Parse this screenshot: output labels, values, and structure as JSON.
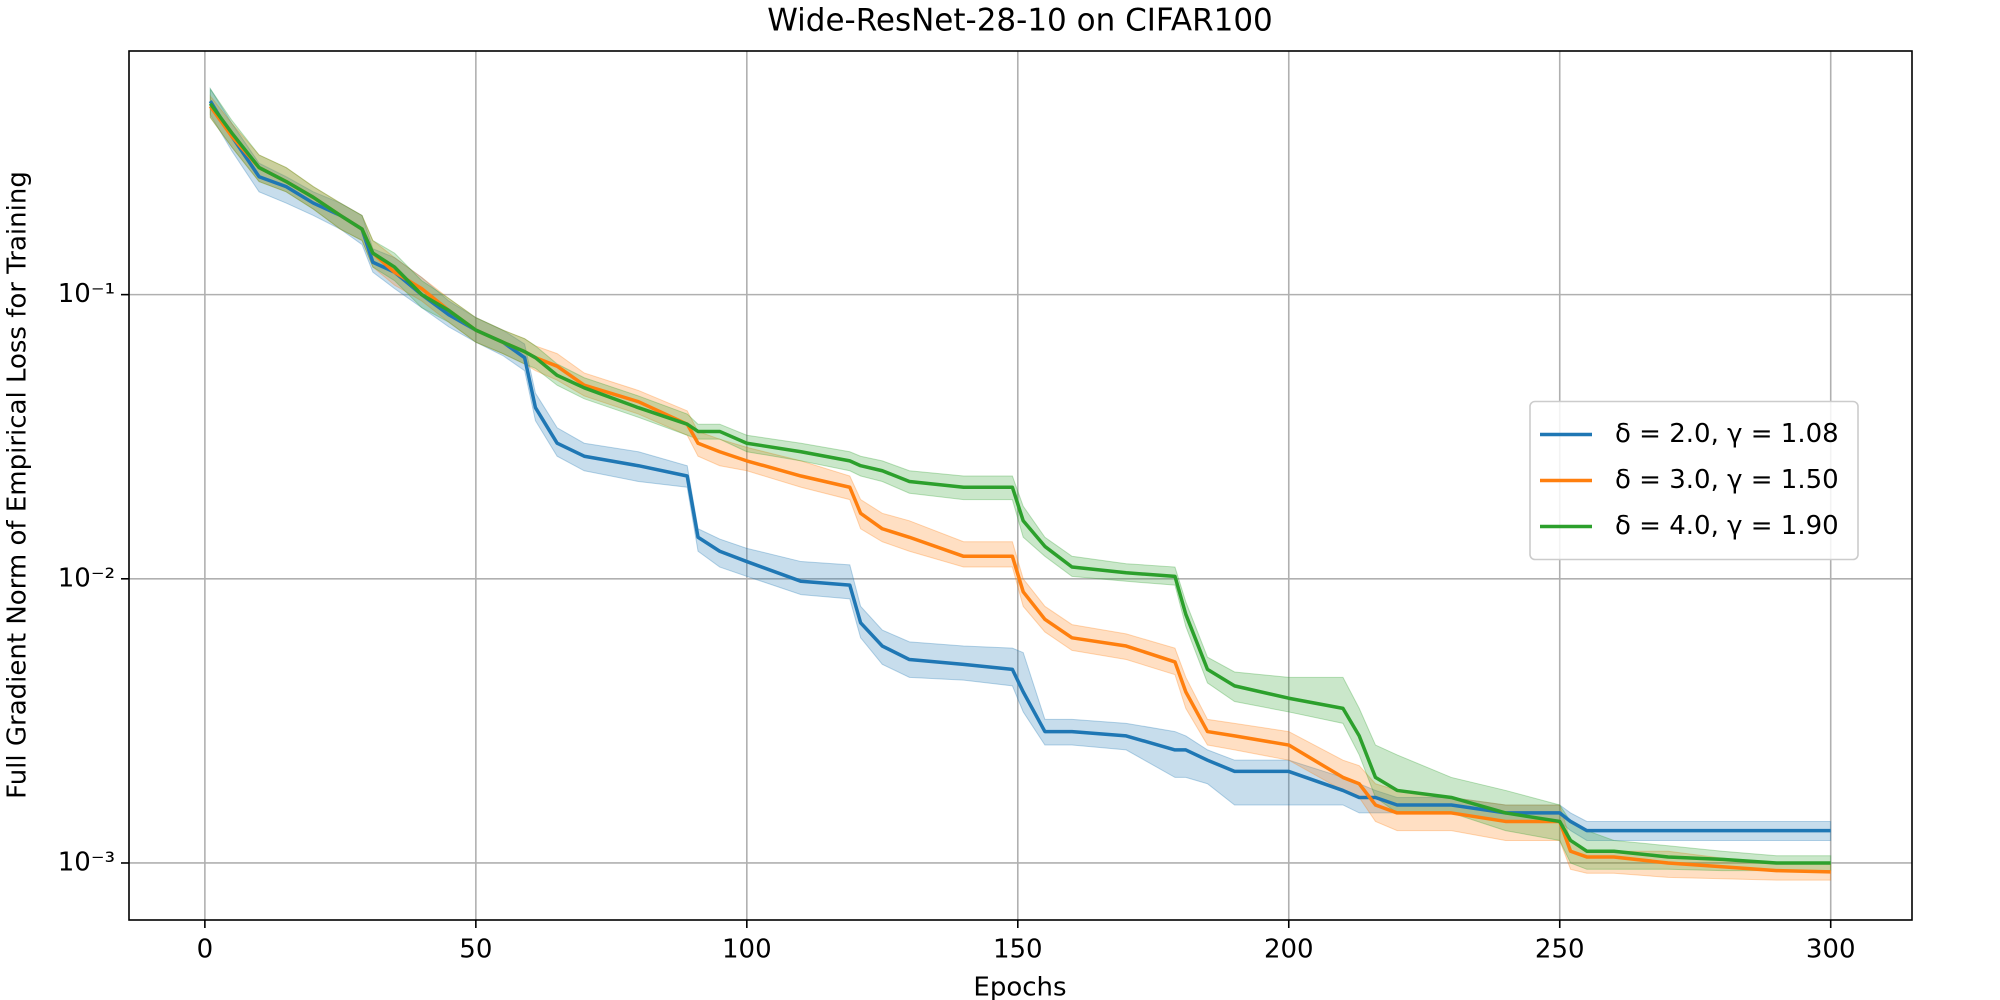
{
  "chart_data": {
    "type": "line",
    "title": "Wide-ResNet-28-10 on CIFAR100",
    "x_label": "Epochs",
    "y_label": "Full Gradient Norm of Empirical Loss for Training",
    "log_y": true,
    "grid": true,
    "legend": "center right",
    "xlim": [
      -14,
      315
    ],
    "ylim": [
      0.00063,
      0.72
    ],
    "xticks": [
      0,
      50,
      100,
      150,
      200,
      250,
      300
    ],
    "yticks": [
      {
        "value": 0.001,
        "label": "10⁻³"
      },
      {
        "value": 0.01,
        "label": "10⁻²"
      },
      {
        "value": 0.1,
        "label": "10⁻¹"
      }
    ],
    "x": [
      1,
      5,
      10,
      15,
      20,
      25,
      29,
      31,
      35,
      40,
      45,
      50,
      55,
      59,
      61,
      65,
      70,
      80,
      89,
      91,
      95,
      100,
      110,
      119,
      121,
      125,
      130,
      140,
      149,
      151,
      155,
      160,
      170,
      179,
      181,
      185,
      190,
      200,
      210,
      213,
      216,
      220,
      230,
      240,
      250,
      252,
      255,
      260,
      270,
      280,
      290,
      300
    ],
    "series": [
      {
        "name": "δ = 2.0, γ = 1.08",
        "color": "#1f77b4",
        "values": [
          0.48,
          0.36,
          0.26,
          0.24,
          0.21,
          0.19,
          0.17,
          0.13,
          0.12,
          0.1,
          0.085,
          0.075,
          0.068,
          0.06,
          0.04,
          0.03,
          0.027,
          0.025,
          0.023,
          0.014,
          0.0125,
          0.0115,
          0.0098,
          0.0095,
          0.007,
          0.0058,
          0.0052,
          0.005,
          0.0048,
          0.004,
          0.0029,
          0.0029,
          0.0028,
          0.0025,
          0.0025,
          0.0023,
          0.0021,
          0.0021,
          0.0018,
          0.0017,
          0.0017,
          0.0016,
          0.0016,
          0.0015,
          0.0015,
          0.0014,
          0.0013,
          0.0013,
          0.0013,
          0.0013,
          0.0013,
          0.0013
        ],
        "lower": [
          0.43,
          0.32,
          0.23,
          0.21,
          0.19,
          0.17,
          0.15,
          0.12,
          0.105,
          0.09,
          0.077,
          0.068,
          0.061,
          0.054,
          0.036,
          0.027,
          0.024,
          0.022,
          0.021,
          0.0125,
          0.011,
          0.0102,
          0.0088,
          0.0085,
          0.0062,
          0.005,
          0.0045,
          0.0044,
          0.0042,
          0.0034,
          0.0026,
          0.0026,
          0.0025,
          0.002,
          0.002,
          0.0019,
          0.0016,
          0.0016,
          0.0016,
          0.0015,
          0.0015,
          0.0015,
          0.0015,
          0.0014,
          0.0014,
          0.0013,
          0.0012,
          0.0012,
          0.0012,
          0.0012,
          0.0012,
          0.0012
        ],
        "upper": [
          0.53,
          0.4,
          0.29,
          0.26,
          0.23,
          0.21,
          0.19,
          0.145,
          0.135,
          0.115,
          0.095,
          0.083,
          0.075,
          0.067,
          0.045,
          0.034,
          0.03,
          0.028,
          0.025,
          0.015,
          0.0138,
          0.0128,
          0.0115,
          0.0112,
          0.008,
          0.0066,
          0.006,
          0.0058,
          0.0057,
          0.0055,
          0.0032,
          0.0032,
          0.0031,
          0.0029,
          0.0028,
          0.0025,
          0.0023,
          0.0023,
          0.002,
          0.0019,
          0.0018,
          0.0017,
          0.0017,
          0.0016,
          0.0016,
          0.0015,
          0.0014,
          0.0014,
          0.0014,
          0.0014,
          0.0014,
          0.0014
        ]
      },
      {
        "name": "δ = 3.0, γ = 1.50",
        "color": "#ff7f0e",
        "values": [
          0.46,
          0.36,
          0.28,
          0.25,
          0.22,
          0.19,
          0.17,
          0.14,
          0.12,
          0.105,
          0.088,
          0.075,
          0.068,
          0.063,
          0.06,
          0.056,
          0.048,
          0.042,
          0.035,
          0.03,
          0.028,
          0.026,
          0.023,
          0.021,
          0.017,
          0.015,
          0.014,
          0.012,
          0.012,
          0.009,
          0.0072,
          0.0062,
          0.0058,
          0.0051,
          0.004,
          0.0029,
          0.0028,
          0.0026,
          0.002,
          0.0019,
          0.0016,
          0.0015,
          0.0015,
          0.0014,
          0.0014,
          0.0011,
          0.00105,
          0.00105,
          0.001,
          0.00097,
          0.00094,
          0.00093
        ],
        "lower": [
          0.42,
          0.33,
          0.25,
          0.23,
          0.2,
          0.17,
          0.155,
          0.125,
          0.108,
          0.095,
          0.08,
          0.068,
          0.062,
          0.057,
          0.054,
          0.05,
          0.044,
          0.038,
          0.032,
          0.027,
          0.025,
          0.024,
          0.021,
          0.019,
          0.015,
          0.0135,
          0.0125,
          0.011,
          0.011,
          0.008,
          0.0065,
          0.0056,
          0.0052,
          0.0046,
          0.0035,
          0.0026,
          0.0025,
          0.0023,
          0.0018,
          0.0017,
          0.0014,
          0.0013,
          0.0013,
          0.0012,
          0.0012,
          0.00095,
          0.00092,
          0.00092,
          0.00089,
          0.00088,
          0.00087,
          0.00087
        ],
        "upper": [
          0.5,
          0.4,
          0.31,
          0.28,
          0.24,
          0.21,
          0.19,
          0.155,
          0.135,
          0.115,
          0.097,
          0.083,
          0.075,
          0.07,
          0.066,
          0.062,
          0.053,
          0.046,
          0.039,
          0.033,
          0.031,
          0.029,
          0.026,
          0.023,
          0.019,
          0.017,
          0.016,
          0.0135,
          0.0135,
          0.01,
          0.008,
          0.0069,
          0.0064,
          0.0057,
          0.0045,
          0.0032,
          0.0031,
          0.0029,
          0.0023,
          0.0022,
          0.0019,
          0.0018,
          0.0017,
          0.0016,
          0.0016,
          0.0012,
          0.0011,
          0.0011,
          0.0011,
          0.00104,
          0.001,
          0.00099
        ]
      },
      {
        "name": "δ = 4.0, γ = 1.90",
        "color": "#2ca02c",
        "values": [
          0.47,
          0.37,
          0.28,
          0.25,
          0.22,
          0.19,
          0.17,
          0.14,
          0.125,
          0.1,
          0.088,
          0.075,
          0.068,
          0.063,
          0.06,
          0.052,
          0.047,
          0.04,
          0.035,
          0.033,
          0.033,
          0.03,
          0.028,
          0.026,
          0.025,
          0.024,
          0.022,
          0.021,
          0.021,
          0.016,
          0.013,
          0.011,
          0.0105,
          0.0102,
          0.0075,
          0.0048,
          0.0042,
          0.0038,
          0.0035,
          0.0028,
          0.002,
          0.0018,
          0.0017,
          0.0015,
          0.0014,
          0.0012,
          0.0011,
          0.0011,
          0.00105,
          0.00103,
          0.001,
          0.001
        ],
        "lower": [
          0.42,
          0.33,
          0.25,
          0.23,
          0.2,
          0.17,
          0.155,
          0.125,
          0.112,
          0.09,
          0.08,
          0.068,
          0.062,
          0.057,
          0.055,
          0.048,
          0.043,
          0.037,
          0.032,
          0.031,
          0.031,
          0.028,
          0.026,
          0.024,
          0.023,
          0.022,
          0.02,
          0.019,
          0.019,
          0.014,
          0.012,
          0.0102,
          0.0098,
          0.0095,
          0.0068,
          0.0043,
          0.0037,
          0.0034,
          0.0031,
          0.0024,
          0.0017,
          0.0015,
          0.0015,
          0.0013,
          0.0012,
          0.001,
          0.00095,
          0.00095,
          0.00095,
          0.00094,
          0.00094,
          0.00094
        ],
        "upper": [
          0.53,
          0.41,
          0.31,
          0.28,
          0.24,
          0.21,
          0.19,
          0.155,
          0.14,
          0.112,
          0.097,
          0.083,
          0.075,
          0.07,
          0.066,
          0.057,
          0.051,
          0.044,
          0.038,
          0.035,
          0.035,
          0.032,
          0.03,
          0.028,
          0.027,
          0.026,
          0.024,
          0.023,
          0.023,
          0.018,
          0.014,
          0.012,
          0.0113,
          0.011,
          0.0083,
          0.0053,
          0.0047,
          0.0045,
          0.0045,
          0.0035,
          0.0026,
          0.0024,
          0.002,
          0.0018,
          0.0016,
          0.0014,
          0.0013,
          0.0012,
          0.00115,
          0.0011,
          0.00106,
          0.00106
        ]
      }
    ]
  }
}
